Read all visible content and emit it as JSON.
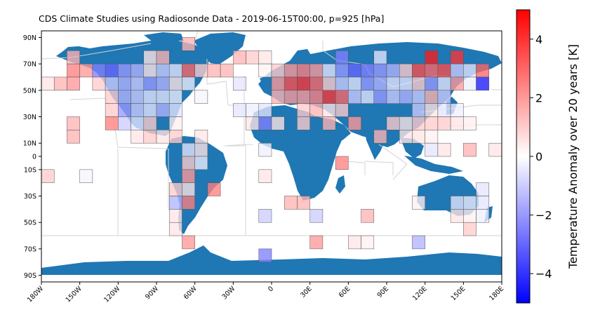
{
  "chart_data": {
    "type": "heatmap",
    "title": "CDS Climate Studies using Radiosonde Data - 2019-06-15T00:00, p=925 [hPa]",
    "projection": "plate-carree world map",
    "grid_resolution_deg": 10,
    "x_range": [
      -180,
      180
    ],
    "y_range": [
      -95,
      95
    ],
    "x_ticks": [
      {
        "value": -180,
        "label": "180W"
      },
      {
        "value": -150,
        "label": "150W"
      },
      {
        "value": -120,
        "label": "120W"
      },
      {
        "value": -90,
        "label": "90W"
      },
      {
        "value": -60,
        "label": "60W"
      },
      {
        "value": -30,
        "label": "30W"
      },
      {
        "value": 0,
        "label": "0"
      },
      {
        "value": 30,
        "label": "30E"
      },
      {
        "value": 60,
        "label": "60E"
      },
      {
        "value": 90,
        "label": "90E"
      },
      {
        "value": 120,
        "label": "120E"
      },
      {
        "value": 150,
        "label": "150E"
      },
      {
        "value": 180,
        "label": "180E"
      }
    ],
    "y_ticks": [
      {
        "value": 90,
        "label": "90N"
      },
      {
        "value": 70,
        "label": "70N"
      },
      {
        "value": 50,
        "label": "50N"
      },
      {
        "value": 30,
        "label": "30N"
      },
      {
        "value": 10,
        "label": "10N"
      },
      {
        "value": 0,
        "label": "0"
      },
      {
        "value": -10,
        "label": "10S"
      },
      {
        "value": -30,
        "label": "30S"
      },
      {
        "value": -50,
        "label": "50S"
      },
      {
        "value": -70,
        "label": "70S"
      },
      {
        "value": -90,
        "label": "90S"
      }
    ],
    "colorbar": {
      "label": "Temperature Anomaly over 20 years [K]",
      "range": [
        -5,
        5
      ],
      "colormap": "bwr",
      "ticks": [
        {
          "value": 4,
          "label": "4"
        },
        {
          "value": 2,
          "label": "2"
        },
        {
          "value": 0,
          "label": "0"
        },
        {
          "value": -2,
          "label": "−2"
        },
        {
          "value": -4,
          "label": "−4"
        }
      ]
    },
    "cells": [
      {
        "lon": -155,
        "lat": 75,
        "value": 1.5
      },
      {
        "lon": -65,
        "lat": 85,
        "value": 1.5
      },
      {
        "lon": -155,
        "lat": 65,
        "value": 2.5
      },
      {
        "lon": -145,
        "lat": 65,
        "value": 2.0
      },
      {
        "lon": -135,
        "lat": 65,
        "value": -2.5
      },
      {
        "lon": -125,
        "lat": 65,
        "value": -3.0
      },
      {
        "lon": -115,
        "lat": 65,
        "value": -2.0
      },
      {
        "lon": -105,
        "lat": 65,
        "value": -1.5
      },
      {
        "lon": -95,
        "lat": 65,
        "value": 0.5
      },
      {
        "lon": -85,
        "lat": 65,
        "value": -1.0
      },
      {
        "lon": -75,
        "lat": 65,
        "value": -0.5
      },
      {
        "lon": -65,
        "lat": 65,
        "value": 3.0
      },
      {
        "lon": -55,
        "lat": 65,
        "value": 1.0
      },
      {
        "lon": -45,
        "lat": 65,
        "value": 1.5
      },
      {
        "lon": -35,
        "lat": 65,
        "value": 1.5
      },
      {
        "lon": -95,
        "lat": 75,
        "value": 0.5
      },
      {
        "lon": -85,
        "lat": 75,
        "value": 1.5
      },
      {
        "lon": -25,
        "lat": 75,
        "value": 1.5
      },
      {
        "lon": -15,
        "lat": 75,
        "value": 1.0
      },
      {
        "lon": -5,
        "lat": 75,
        "value": 0.5
      },
      {
        "lon": -5,
        "lat": 65,
        "value": 0.2
      },
      {
        "lon": 5,
        "lat": 65,
        "value": 1.0
      },
      {
        "lon": 15,
        "lat": 65,
        "value": 2.0
      },
      {
        "lon": 25,
        "lat": 65,
        "value": 2.5
      },
      {
        "lon": 35,
        "lat": 65,
        "value": 2.0
      },
      {
        "lon": 45,
        "lat": 65,
        "value": -0.5
      },
      {
        "lon": 55,
        "lat": 75,
        "value": -2.5
      },
      {
        "lon": 55,
        "lat": 65,
        "value": -2.0
      },
      {
        "lon": 65,
        "lat": 65,
        "value": -3.0
      },
      {
        "lon": 75,
        "lat": 65,
        "value": -2.5
      },
      {
        "lon": 85,
        "lat": 75,
        "value": -0.5
      },
      {
        "lon": 85,
        "lat": 65,
        "value": -2.0
      },
      {
        "lon": 95,
        "lat": 65,
        "value": -1.5
      },
      {
        "lon": 105,
        "lat": 65,
        "value": 1.0
      },
      {
        "lon": 115,
        "lat": 65,
        "value": 3.5
      },
      {
        "lon": 125,
        "lat": 75,
        "value": 4.5
      },
      {
        "lon": 125,
        "lat": 65,
        "value": 3.0
      },
      {
        "lon": 135,
        "lat": 65,
        "value": 3.5
      },
      {
        "lon": 145,
        "lat": 75,
        "value": 4.0
      },
      {
        "lon": 145,
        "lat": 65,
        "value": -1.0
      },
      {
        "lon": 155,
        "lat": 65,
        "value": -0.5
      },
      {
        "lon": 165,
        "lat": 65,
        "value": 3.0
      },
      {
        "lon": -175,
        "lat": 55,
        "value": 0.5
      },
      {
        "lon": -165,
        "lat": 55,
        "value": 1.5
      },
      {
        "lon": -155,
        "lat": 55,
        "value": 2.0
      },
      {
        "lon": -135,
        "lat": 55,
        "value": 1.0
      },
      {
        "lon": -125,
        "lat": 55,
        "value": -1.0
      },
      {
        "lon": -115,
        "lat": 55,
        "value": -1.5
      },
      {
        "lon": -105,
        "lat": 55,
        "value": -1.0
      },
      {
        "lon": -95,
        "lat": 55,
        "value": -2.0
      },
      {
        "lon": -85,
        "lat": 55,
        "value": -1.5
      },
      {
        "lon": -75,
        "lat": 55,
        "value": 0.5
      },
      {
        "lon": -65,
        "lat": 55,
        "value": -0.3
      },
      {
        "lon": -25,
        "lat": 55,
        "value": -0.5
      },
      {
        "lon": 5,
        "lat": 55,
        "value": 2.0
      },
      {
        "lon": 15,
        "lat": 55,
        "value": 3.5
      },
      {
        "lon": 25,
        "lat": 55,
        "value": 4.0
      },
      {
        "lon": 35,
        "lat": 55,
        "value": 3.0
      },
      {
        "lon": 45,
        "lat": 55,
        "value": 1.0
      },
      {
        "lon": 55,
        "lat": 55,
        "value": -1.0
      },
      {
        "lon": 65,
        "lat": 55,
        "value": -0.5
      },
      {
        "lon": 75,
        "lat": 55,
        "value": -2.0
      },
      {
        "lon": 85,
        "lat": 55,
        "value": -1.5
      },
      {
        "lon": 95,
        "lat": 55,
        "value": -0.5
      },
      {
        "lon": 105,
        "lat": 55,
        "value": -0.5
      },
      {
        "lon": 115,
        "lat": 55,
        "value": 1.0
      },
      {
        "lon": 125,
        "lat": 55,
        "value": -2.0
      },
      {
        "lon": 135,
        "lat": 55,
        "value": -0.5
      },
      {
        "lon": 145,
        "lat": 55,
        "value": 2.0
      },
      {
        "lon": 155,
        "lat": 55,
        "value": -0.3
      },
      {
        "lon": 165,
        "lat": 55,
        "value": -4.5
      },
      {
        "lon": -125,
        "lat": 45,
        "value": 1.0
      },
      {
        "lon": -115,
        "lat": 45,
        "value": -1.5
      },
      {
        "lon": -105,
        "lat": 45,
        "value": -1.0
      },
      {
        "lon": -95,
        "lat": 45,
        "value": -0.5
      },
      {
        "lon": -85,
        "lat": 45,
        "value": -0.5
      },
      {
        "lon": -75,
        "lat": 45,
        "value": -0.3
      },
      {
        "lon": -55,
        "lat": 45,
        "value": -0.2
      },
      {
        "lon": 5,
        "lat": 45,
        "value": 1.5
      },
      {
        "lon": 15,
        "lat": 45,
        "value": 2.0
      },
      {
        "lon": 25,
        "lat": 45,
        "value": 2.0
      },
      {
        "lon": 35,
        "lat": 45,
        "value": 2.5
      },
      {
        "lon": 45,
        "lat": 45,
        "value": 4.0
      },
      {
        "lon": 55,
        "lat": 45,
        "value": 3.0
      },
      {
        "lon": 65,
        "lat": 45,
        "value": -1.0
      },
      {
        "lon": 75,
        "lat": 45,
        "value": -0.5
      },
      {
        "lon": 85,
        "lat": 45,
        "value": -2.0
      },
      {
        "lon": 95,
        "lat": 45,
        "value": -1.0
      },
      {
        "lon": 105,
        "lat": 45,
        "value": -1.5
      },
      {
        "lon": 115,
        "lat": 45,
        "value": -1.0
      },
      {
        "lon": 125,
        "lat": 45,
        "value": 1.5
      },
      {
        "lon": 135,
        "lat": 45,
        "value": -1.0
      },
      {
        "lon": -125,
        "lat": 35,
        "value": 1.0
      },
      {
        "lon": -115,
        "lat": 35,
        "value": -2.0
      },
      {
        "lon": -105,
        "lat": 35,
        "value": -1.0
      },
      {
        "lon": -95,
        "lat": 35,
        "value": -0.5
      },
      {
        "lon": -85,
        "lat": 35,
        "value": -1.5
      },
      {
        "lon": -75,
        "lat": 35,
        "value": -0.5
      },
      {
        "lon": -25,
        "lat": 35,
        "value": -0.5
      },
      {
        "lon": -15,
        "lat": 35,
        "value": -0.3
      },
      {
        "lon": -5,
        "lat": 35,
        "value": -0.5
      },
      {
        "lon": 25,
        "lat": 35,
        "value": 1.0
      },
      {
        "lon": 35,
        "lat": 35,
        "value": 1.5
      },
      {
        "lon": 45,
        "lat": 35,
        "value": 0.5
      },
      {
        "lon": 55,
        "lat": 35,
        "value": 1.0
      },
      {
        "lon": 115,
        "lat": 35,
        "value": -1.0
      },
      {
        "lon": 125,
        "lat": 35,
        "value": 0.5
      },
      {
        "lon": 135,
        "lat": 35,
        "value": -0.5
      },
      {
        "lon": 145,
        "lat": 35,
        "value": -0.3
      },
      {
        "lon": -155,
        "lat": 25,
        "value": 1.5
      },
      {
        "lon": -125,
        "lat": 25,
        "value": 2.5
      },
      {
        "lon": -115,
        "lat": 25,
        "value": -1.0
      },
      {
        "lon": -105,
        "lat": 25,
        "value": -0.5
      },
      {
        "lon": -95,
        "lat": 25,
        "value": 1.0
      },
      {
        "lon": -75,
        "lat": 25,
        "value": 0.3
      },
      {
        "lon": -15,
        "lat": 25,
        "value": 0.5
      },
      {
        "lon": -5,
        "lat": 25,
        "value": -2.5
      },
      {
        "lon": 5,
        "lat": 25,
        "value": 0.5
      },
      {
        "lon": 25,
        "lat": 25,
        "value": 1.0
      },
      {
        "lon": 45,
        "lat": 25,
        "value": 1.5
      },
      {
        "lon": 65,
        "lat": 25,
        "value": 2.0
      },
      {
        "lon": 95,
        "lat": 25,
        "value": 1.0
      },
      {
        "lon": 105,
        "lat": 25,
        "value": 0.5
      },
      {
        "lon": 115,
        "lat": 25,
        "value": 1.0
      },
      {
        "lon": 125,
        "lat": 25,
        "value": 1.0
      },
      {
        "lon": 135,
        "lat": 25,
        "value": 1.0
      },
      {
        "lon": 145,
        "lat": 25,
        "value": 0.5
      },
      {
        "lon": 155,
        "lat": 25,
        "value": 0.3
      },
      {
        "lon": -155,
        "lat": 15,
        "value": 1.5
      },
      {
        "lon": -105,
        "lat": 15,
        "value": 0.5
      },
      {
        "lon": -95,
        "lat": 15,
        "value": 1.0
      },
      {
        "lon": -85,
        "lat": 15,
        "value": 0.5
      },
      {
        "lon": -75,
        "lat": 15,
        "value": 1.0
      },
      {
        "lon": -55,
        "lat": 15,
        "value": 0.5
      },
      {
        "lon": 85,
        "lat": 15,
        "value": 1.5
      },
      {
        "lon": 105,
        "lat": 15,
        "value": 0.5
      },
      {
        "lon": 115,
        "lat": 15,
        "value": 0.5
      },
      {
        "lon": 125,
        "lat": 15,
        "value": 0.3
      },
      {
        "lon": -65,
        "lat": 5,
        "value": -0.5
      },
      {
        "lon": -55,
        "lat": 5,
        "value": 0.5
      },
      {
        "lon": 125,
        "lat": 5,
        "value": -0.5
      },
      {
        "lon": 135,
        "lat": 5,
        "value": 0.5
      },
      {
        "lon": 155,
        "lat": 5,
        "value": 1.5
      },
      {
        "lon": 175,
        "lat": 5,
        "value": 0.5
      },
      {
        "lon": -5,
        "lat": 5,
        "value": -0.3
      },
      {
        "lon": -65,
        "lat": -5,
        "value": 1.0
      },
      {
        "lon": -55,
        "lat": -5,
        "value": -0.3
      },
      {
        "lon": 55,
        "lat": -5,
        "value": 2.5
      },
      {
        "lon": -175,
        "lat": -15,
        "value": 1.0
      },
      {
        "lon": -145,
        "lat": -15,
        "value": -0.2
      },
      {
        "lon": -65,
        "lat": -15,
        "value": 2.0
      },
      {
        "lon": -5,
        "lat": -15,
        "value": 0.5
      },
      {
        "lon": -75,
        "lat": -25,
        "value": 1.0
      },
      {
        "lon": -65,
        "lat": -25,
        "value": 0.5
      },
      {
        "lon": -45,
        "lat": -25,
        "value": 2.5
      },
      {
        "lon": 165,
        "lat": -25,
        "value": -0.5
      },
      {
        "lon": -75,
        "lat": -35,
        "value": -1.5
      },
      {
        "lon": -65,
        "lat": -35,
        "value": 2.5
      },
      {
        "lon": 15,
        "lat": -35,
        "value": 1.5
      },
      {
        "lon": 25,
        "lat": -35,
        "value": 1.5
      },
      {
        "lon": 115,
        "lat": -35,
        "value": 0.3
      },
      {
        "lon": 145,
        "lat": -35,
        "value": -0.5
      },
      {
        "lon": 155,
        "lat": -35,
        "value": -0.3
      },
      {
        "lon": 165,
        "lat": -35,
        "value": -0.5
      },
      {
        "lon": -75,
        "lat": -45,
        "value": 0.5
      },
      {
        "lon": -5,
        "lat": -45,
        "value": -1.0
      },
      {
        "lon": 35,
        "lat": -45,
        "value": -1.0
      },
      {
        "lon": 75,
        "lat": -45,
        "value": 1.5
      },
      {
        "lon": 145,
        "lat": -45,
        "value": 0.5
      },
      {
        "lon": 155,
        "lat": -45,
        "value": 0.3
      },
      {
        "lon": 165,
        "lat": -45,
        "value": -0.3
      },
      {
        "lon": -75,
        "lat": -55,
        "value": 0.5
      },
      {
        "lon": 155,
        "lat": -55,
        "value": 1.0
      },
      {
        "lon": -65,
        "lat": -65,
        "value": 2.0
      },
      {
        "lon": 35,
        "lat": -65,
        "value": 2.0
      },
      {
        "lon": 65,
        "lat": -65,
        "value": 0.5
      },
      {
        "lon": 75,
        "lat": -65,
        "value": 0.3
      },
      {
        "lon": 115,
        "lat": -65,
        "value": -1.5
      },
      {
        "lon": -5,
        "lat": -75,
        "value": -2.5
      }
    ]
  }
}
